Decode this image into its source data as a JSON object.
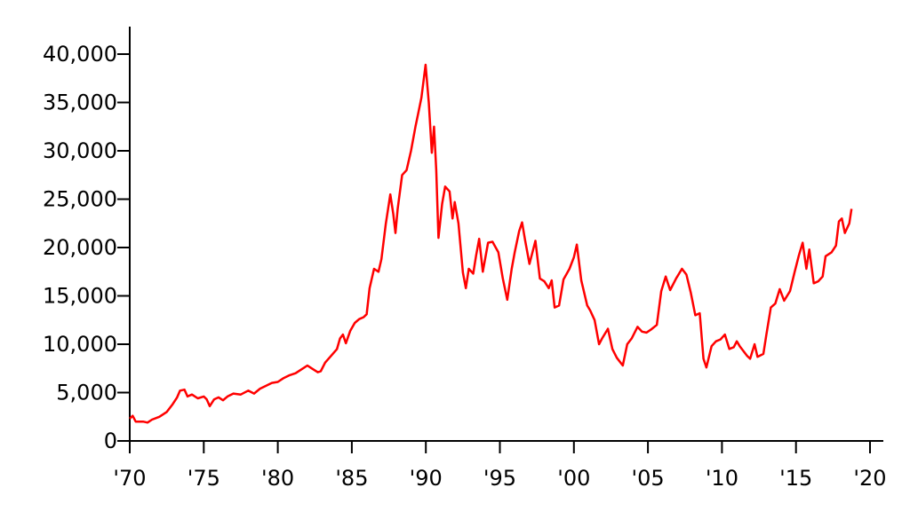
{
  "chart_data": {
    "type": "line",
    "title": "",
    "xlabel": "",
    "ylabel": "",
    "xlim": [
      1970,
      2021
    ],
    "ylim": [
      0,
      43000
    ],
    "grid": false,
    "legend": "none",
    "x_ticks": [
      {
        "value": 1970,
        "label": "'70"
      },
      {
        "value": 1975,
        "label": "'75"
      },
      {
        "value": 1980,
        "label": "'80"
      },
      {
        "value": 1985,
        "label": "'85"
      },
      {
        "value": 1990,
        "label": "'90"
      },
      {
        "value": 1995,
        "label": "'95"
      },
      {
        "value": 2000,
        "label": "'00"
      },
      {
        "value": 2005,
        "label": "'05"
      },
      {
        "value": 2010,
        "label": "'10"
      },
      {
        "value": 2015,
        "label": "'15"
      },
      {
        "value": 2020,
        "label": "'20"
      }
    ],
    "y_ticks": [
      {
        "value": 0,
        "label": "0"
      },
      {
        "value": 5000,
        "label": "5,000"
      },
      {
        "value": 10000,
        "label": "10,000"
      },
      {
        "value": 15000,
        "label": "15,000"
      },
      {
        "value": 20000,
        "label": "20,000"
      },
      {
        "value": 25000,
        "label": "25,000"
      },
      {
        "value": 30000,
        "label": "30,000"
      },
      {
        "value": 35000,
        "label": "35,000"
      },
      {
        "value": 40000,
        "label": "40,000"
      }
    ],
    "series": [
      {
        "color": "#ff0000",
        "points": [
          [
            1970.0,
            2300
          ],
          [
            1970.2,
            2600
          ],
          [
            1970.4,
            2000
          ],
          [
            1970.9,
            2000
          ],
          [
            1971.2,
            1900
          ],
          [
            1971.5,
            2200
          ],
          [
            1972.0,
            2500
          ],
          [
            1972.5,
            3000
          ],
          [
            1972.9,
            3800
          ],
          [
            1973.2,
            4500
          ],
          [
            1973.4,
            5200
          ],
          [
            1973.7,
            5300
          ],
          [
            1973.9,
            4600
          ],
          [
            1974.2,
            4800
          ],
          [
            1974.6,
            4400
          ],
          [
            1975.0,
            4600
          ],
          [
            1975.2,
            4300
          ],
          [
            1975.4,
            3600
          ],
          [
            1975.7,
            4300
          ],
          [
            1976.0,
            4500
          ],
          [
            1976.3,
            4200
          ],
          [
            1976.6,
            4600
          ],
          [
            1977.0,
            4900
          ],
          [
            1977.5,
            4800
          ],
          [
            1978.0,
            5200
          ],
          [
            1978.4,
            4900
          ],
          [
            1978.8,
            5400
          ],
          [
            1979.2,
            5700
          ],
          [
            1979.6,
            6000
          ],
          [
            1980.0,
            6100
          ],
          [
            1980.4,
            6500
          ],
          [
            1980.8,
            6800
          ],
          [
            1981.2,
            7000
          ],
          [
            1981.6,
            7400
          ],
          [
            1982.0,
            7800
          ],
          [
            1982.3,
            7500
          ],
          [
            1982.7,
            7100
          ],
          [
            1982.9,
            7200
          ],
          [
            1983.2,
            8100
          ],
          [
            1983.6,
            8800
          ],
          [
            1984.0,
            9500
          ],
          [
            1984.2,
            10600
          ],
          [
            1984.4,
            11000
          ],
          [
            1984.6,
            10100
          ],
          [
            1984.9,
            11400
          ],
          [
            1985.2,
            12200
          ],
          [
            1985.5,
            12600
          ],
          [
            1985.8,
            12800
          ],
          [
            1986.0,
            13100
          ],
          [
            1986.2,
            15800
          ],
          [
            1986.5,
            17800
          ],
          [
            1986.8,
            17500
          ],
          [
            1987.0,
            18800
          ],
          [
            1987.3,
            22500
          ],
          [
            1987.6,
            25500
          ],
          [
            1987.8,
            23500
          ],
          [
            1987.95,
            21500
          ],
          [
            1988.1,
            24000
          ],
          [
            1988.4,
            27500
          ],
          [
            1988.7,
            28000
          ],
          [
            1989.0,
            30000
          ],
          [
            1989.3,
            32500
          ],
          [
            1989.5,
            34000
          ],
          [
            1989.7,
            35500
          ],
          [
            1989.98,
            38900
          ],
          [
            1990.2,
            35000
          ],
          [
            1990.4,
            29800
          ],
          [
            1990.55,
            32500
          ],
          [
            1990.7,
            28000
          ],
          [
            1990.85,
            21000
          ],
          [
            1991.1,
            24500
          ],
          [
            1991.3,
            26300
          ],
          [
            1991.6,
            25800
          ],
          [
            1991.8,
            23000
          ],
          [
            1991.95,
            24700
          ],
          [
            1992.2,
            22500
          ],
          [
            1992.5,
            17400
          ],
          [
            1992.7,
            15800
          ],
          [
            1992.9,
            17800
          ],
          [
            1993.2,
            17300
          ],
          [
            1993.4,
            19200
          ],
          [
            1993.6,
            20900
          ],
          [
            1993.85,
            17500
          ],
          [
            1994.2,
            20500
          ],
          [
            1994.5,
            20600
          ],
          [
            1994.9,
            19500
          ],
          [
            1995.2,
            16800
          ],
          [
            1995.5,
            14600
          ],
          [
            1995.8,
            17800
          ],
          [
            1996.0,
            19500
          ],
          [
            1996.3,
            21700
          ],
          [
            1996.5,
            22600
          ],
          [
            1996.7,
            20800
          ],
          [
            1997.0,
            18300
          ],
          [
            1997.4,
            20700
          ],
          [
            1997.7,
            16800
          ],
          [
            1998.0,
            16500
          ],
          [
            1998.3,
            15800
          ],
          [
            1998.5,
            16600
          ],
          [
            1998.7,
            13800
          ],
          [
            1999.0,
            14000
          ],
          [
            1999.3,
            16700
          ],
          [
            1999.7,
            17800
          ],
          [
            2000.0,
            19000
          ],
          [
            2000.2,
            20300
          ],
          [
            2000.5,
            16600
          ],
          [
            2000.9,
            14000
          ],
          [
            2001.1,
            13500
          ],
          [
            2001.4,
            12500
          ],
          [
            2001.7,
            10000
          ],
          [
            2001.9,
            10600
          ],
          [
            2002.3,
            11600
          ],
          [
            2002.6,
            9500
          ],
          [
            2002.9,
            8600
          ],
          [
            2003.3,
            7800
          ],
          [
            2003.6,
            10000
          ],
          [
            2003.9,
            10600
          ],
          [
            2004.3,
            11800
          ],
          [
            2004.6,
            11300
          ],
          [
            2004.9,
            11200
          ],
          [
            2005.2,
            11500
          ],
          [
            2005.6,
            12000
          ],
          [
            2005.9,
            15500
          ],
          [
            2006.2,
            17000
          ],
          [
            2006.5,
            15600
          ],
          [
            2006.9,
            16800
          ],
          [
            2007.3,
            17800
          ],
          [
            2007.6,
            17200
          ],
          [
            2007.9,
            15300
          ],
          [
            2008.2,
            13000
          ],
          [
            2008.5,
            13200
          ],
          [
            2008.75,
            8500
          ],
          [
            2008.95,
            7600
          ],
          [
            2009.3,
            9800
          ],
          [
            2009.6,
            10300
          ],
          [
            2009.9,
            10500
          ],
          [
            2010.2,
            11000
          ],
          [
            2010.5,
            9500
          ],
          [
            2010.8,
            9700
          ],
          [
            2011.0,
            10300
          ],
          [
            2011.2,
            9800
          ],
          [
            2011.7,
            8800
          ],
          [
            2011.9,
            8500
          ],
          [
            2012.2,
            10000
          ],
          [
            2012.4,
            8700
          ],
          [
            2012.8,
            9000
          ],
          [
            2013.0,
            11000
          ],
          [
            2013.3,
            13800
          ],
          [
            2013.6,
            14200
          ],
          [
            2013.9,
            15700
          ],
          [
            2014.2,
            14500
          ],
          [
            2014.6,
            15500
          ],
          [
            2014.9,
            17400
          ],
          [
            2015.2,
            19200
          ],
          [
            2015.45,
            20500
          ],
          [
            2015.7,
            17800
          ],
          [
            2015.9,
            19800
          ],
          [
            2016.2,
            16300
          ],
          [
            2016.5,
            16500
          ],
          [
            2016.8,
            17000
          ],
          [
            2017.0,
            19100
          ],
          [
            2017.4,
            19500
          ],
          [
            2017.7,
            20200
          ],
          [
            2017.9,
            22700
          ],
          [
            2018.1,
            23000
          ],
          [
            2018.3,
            21500
          ],
          [
            2018.6,
            22500
          ],
          [
            2018.75,
            24000
          ]
        ]
      }
    ]
  }
}
